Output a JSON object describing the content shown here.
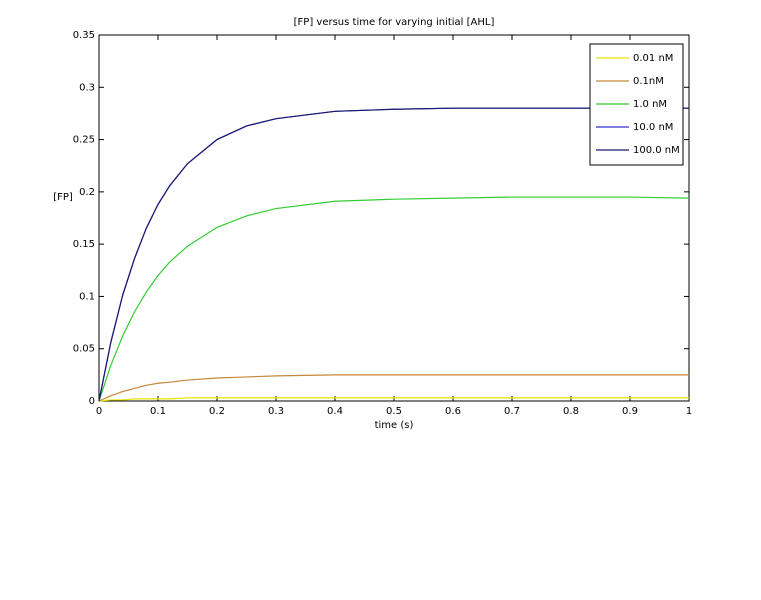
{
  "chart_data": {
    "type": "line",
    "title": "[FP] versus time for varying initial [AHL]",
    "x_label": "time (s)",
    "y_label": "[FP]",
    "x": [
      0,
      0.02,
      0.04,
      0.06,
      0.08,
      0.1,
      0.12,
      0.15,
      0.2,
      0.25,
      0.3,
      0.4,
      0.5,
      0.6,
      0.7,
      0.8,
      0.9,
      1
    ],
    "series": [
      {
        "name": "0.01 nM",
        "color": "#e6e600",
        "values": [
          0,
          0.001,
          0.001,
          0.002,
          0.002,
          0.002,
          0.002,
          0.003,
          0.003,
          0.003,
          0.003,
          0.003,
          0.003,
          0.003,
          0.003,
          0.003,
          0.003,
          0.003
        ]
      },
      {
        "name": "0.1nM",
        "color": "#c8863a",
        "values": [
          0,
          0.005,
          0.009,
          0.012,
          0.015,
          0.017,
          0.018,
          0.02,
          0.022,
          0.023,
          0.024,
          0.025,
          0.025,
          0.025,
          0.025,
          0.025,
          0.025,
          0.025
        ]
      },
      {
        "name": "1.0 nM",
        "color": "#33cc33",
        "values": [
          0,
          0.034,
          0.062,
          0.085,
          0.104,
          0.12,
          0.133,
          0.148,
          0.166,
          0.177,
          0.184,
          0.191,
          0.193,
          0.194,
          0.195,
          0.195,
          0.195,
          0.194
        ]
      },
      {
        "name": "10.0 nM",
        "color": "#3333cc",
        "values": [
          0,
          0.056,
          0.101,
          0.136,
          0.165,
          0.188,
          0.206,
          0.227,
          0.25,
          0.263,
          0.27,
          0.277,
          0.279,
          0.28,
          0.28,
          0.28,
          0.28,
          0.28
        ]
      },
      {
        "name": "100.0 nM",
        "color": "#1a1a6e",
        "values": [
          0,
          0.056,
          0.101,
          0.136,
          0.165,
          0.188,
          0.206,
          0.227,
          0.25,
          0.263,
          0.27,
          0.277,
          0.279,
          0.28,
          0.28,
          0.28,
          0.28,
          0.28
        ]
      }
    ],
    "xlim": [
      0,
      1
    ],
    "xticks": [
      0,
      0.1,
      0.2,
      0.3,
      0.4,
      0.5,
      0.6,
      0.7,
      0.8,
      0.9,
      1
    ],
    "ylim": [
      0,
      0.35
    ],
    "yticks": [
      0,
      0.05,
      0.1,
      0.15,
      0.2,
      0.25,
      0.3,
      0.35
    ],
    "legend_position": "upper right",
    "grid": false
  }
}
